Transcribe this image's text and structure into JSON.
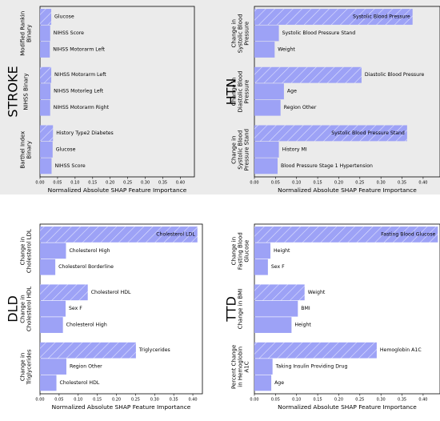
{
  "colors": {
    "bar": "#9da2f6",
    "hatch": "#e0e2ff",
    "frame": "#000000",
    "background_top": "#ebebeb"
  },
  "chart_data": [
    {
      "type": "bar",
      "orientation": "horizontal",
      "title": "STROKE",
      "xlabel": "Normalized Absolute SHAP Feature Importance",
      "xlim": [
        0,
        0.44
      ],
      "xticks": [
        "0.00",
        "0.05",
        "0.10",
        "0.15",
        "0.20",
        "0.25",
        "0.30",
        "0.35",
        "0.40"
      ],
      "groups": [
        {
          "name": "Modified Rankin Binary",
          "bars": [
            {
              "label": "Glucose",
              "value": 0.032
            },
            {
              "label": "NIHSS Score",
              "value": 0.029
            },
            {
              "label": "NIHSS Motorarm Left",
              "value": 0.028
            }
          ]
        },
        {
          "name": "NIHSS Binary",
          "bars": [
            {
              "label": "NIHSS Motorarm Left",
              "value": 0.032
            },
            {
              "label": "NIHSS Motorleg Left",
              "value": 0.03
            },
            {
              "label": "NIHSS Motorarm Right",
              "value": 0.029
            }
          ]
        },
        {
          "name": "Barthel Index Binary",
          "bars": [
            {
              "label": "History Type2 Diabetes",
              "value": 0.037
            },
            {
              "label": "Glucose",
              "value": 0.036
            },
            {
              "label": "NIHSS Score",
              "value": 0.033
            }
          ]
        }
      ]
    },
    {
      "type": "bar",
      "orientation": "horizontal",
      "title": "HTN",
      "xlabel": "Normalized Absolute SHAP Feature Importance",
      "xlim": [
        0,
        0.44
      ],
      "xticks": [
        "0.00",
        "0.05",
        "0.10",
        "0.15",
        "0.20",
        "0.25",
        "0.30",
        "0.35",
        "0.40"
      ],
      "groups": [
        {
          "name": "Change in Systolic Blood Pressure",
          "bars": [
            {
              "label": "Systolic Blood Pressure",
              "value": 0.375
            },
            {
              "label": "Systolic Blood Pressure Stand",
              "value": 0.058
            },
            {
              "label": "Weight",
              "value": 0.048
            }
          ]
        },
        {
          "name": "Change in Diastolic Blood Pressure",
          "bars": [
            {
              "label": "Diastolic Blood Pressure",
              "value": 0.254
            },
            {
              "label": "Age",
              "value": 0.07
            },
            {
              "label": "Region Other",
              "value": 0.062
            }
          ]
        },
        {
          "name": "Change in Systolic Blood Pressure Stand",
          "bars": [
            {
              "label": "Systolic Blood Pressure Stand",
              "value": 0.362
            },
            {
              "label": "History MI",
              "value": 0.058
            },
            {
              "label": "Blood Pressure Stage 1 Hypertension",
              "value": 0.055
            }
          ]
        }
      ]
    },
    {
      "type": "bar",
      "orientation": "horizontal",
      "title": "DLD",
      "xlabel": "Normalized Absolute SHAP Feature Importance",
      "xlim": [
        0,
        0.425
      ],
      "xticks": [
        "0.00",
        "0.05",
        "0.10",
        "0.15",
        "0.20",
        "0.25",
        "0.30",
        "0.35",
        "0.40"
      ],
      "groups": [
        {
          "name": "Change in Cholesterol LDL",
          "bars": [
            {
              "label": "Cholesterol LDL",
              "value": 0.412
            },
            {
              "label": "Cholesterol High",
              "value": 0.068
            },
            {
              "label": "Cholesterol Borderline",
              "value": 0.04
            }
          ]
        },
        {
          "name": "Change in Cholesterol HDL",
          "bars": [
            {
              "label": "Cholesterol HDL",
              "value": 0.125
            },
            {
              "label": "Sex F",
              "value": 0.067
            },
            {
              "label": "Cholesterol High",
              "value": 0.06
            }
          ]
        },
        {
          "name": "Change in Triglycerides",
          "bars": [
            {
              "label": "Triglycerides",
              "value": 0.251
            },
            {
              "label": "Region Other",
              "value": 0.069
            },
            {
              "label": "Cholesterol HDL",
              "value": 0.043
            }
          ]
        }
      ]
    },
    {
      "type": "bar",
      "orientation": "horizontal",
      "title": "TTD",
      "xlabel": "Normalized Absolute SHAP Feature Importance",
      "xlim": [
        0,
        0.44
      ],
      "xticks": [
        "0.00",
        "0.05",
        "0.10",
        "0.15",
        "0.20",
        "0.25",
        "0.30",
        "0.35",
        "0.40"
      ],
      "groups": [
        {
          "name": "Change in Fasting Blood Glucose",
          "bars": [
            {
              "label": "Fasting Blood Glucose",
              "value": 0.435
            },
            {
              "label": "Height",
              "value": 0.038
            },
            {
              "label": "Sex F",
              "value": 0.032
            }
          ]
        },
        {
          "name": "Change in BMI",
          "bars": [
            {
              "label": "Weight",
              "value": 0.119
            },
            {
              "label": "BMI",
              "value": 0.103
            },
            {
              "label": "Height",
              "value": 0.088
            }
          ]
        },
        {
          "name": "Percent Change in Hemoglobin A1C",
          "bars": [
            {
              "label": "Hemoglobin A1C",
              "value": 0.29
            },
            {
              "label": "Taking Insulin Providing Drug",
              "value": 0.043
            },
            {
              "label": "Age",
              "value": 0.04
            }
          ]
        }
      ]
    }
  ]
}
